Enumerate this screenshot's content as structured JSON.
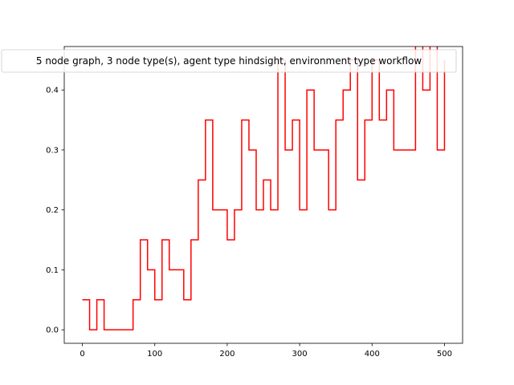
{
  "chart_data": {
    "type": "line",
    "title": "",
    "xlabel": "",
    "ylabel": "",
    "xlim": [
      -25,
      525
    ],
    "ylim": [
      -0.0225,
      0.4725
    ],
    "grid": false,
    "xticks": [
      0,
      100,
      200,
      300,
      400,
      500
    ],
    "xtick_labels": [
      "0",
      "100",
      "200",
      "300",
      "400",
      "500"
    ],
    "yticks": [
      0.0,
      0.1,
      0.2,
      0.3,
      0.4
    ],
    "ytick_labels": [
      "0.0",
      "0.1",
      "0.2",
      "0.3",
      "0.4"
    ],
    "legend": {
      "placement": "top",
      "entries": [
        "5 node graph, 3 node type(s), agent type hindsight, environment type workflow"
      ]
    },
    "series": [
      {
        "color": "#ff0000",
        "step": true,
        "x": [
          0,
          10,
          20,
          30,
          40,
          50,
          60,
          70,
          80,
          90,
          100,
          110,
          120,
          130,
          140,
          150,
          160,
          170,
          180,
          190,
          200,
          210,
          220,
          230,
          240,
          250,
          260,
          270,
          280,
          290,
          300,
          310,
          320,
          330,
          340,
          350,
          360,
          370,
          380,
          390,
          400,
          410,
          420,
          430,
          440,
          450,
          460,
          470,
          480,
          490,
          500
        ],
        "y": [
          0.05,
          0.0,
          0.05,
          0.0,
          0.0,
          0.0,
          0.0,
          0.05,
          0.15,
          0.1,
          0.05,
          0.15,
          0.1,
          0.1,
          0.05,
          0.15,
          0.25,
          0.35,
          0.2,
          0.2,
          0.15,
          0.2,
          0.35,
          0.3,
          0.2,
          0.25,
          0.2,
          0.45,
          0.3,
          0.35,
          0.2,
          0.4,
          0.3,
          0.3,
          0.2,
          0.35,
          0.4,
          0.45,
          0.25,
          0.35,
          0.45,
          0.35,
          0.4,
          0.3,
          0.3,
          0.3,
          0.5,
          0.4,
          0.5,
          0.3,
          0.45
        ]
      }
    ]
  }
}
